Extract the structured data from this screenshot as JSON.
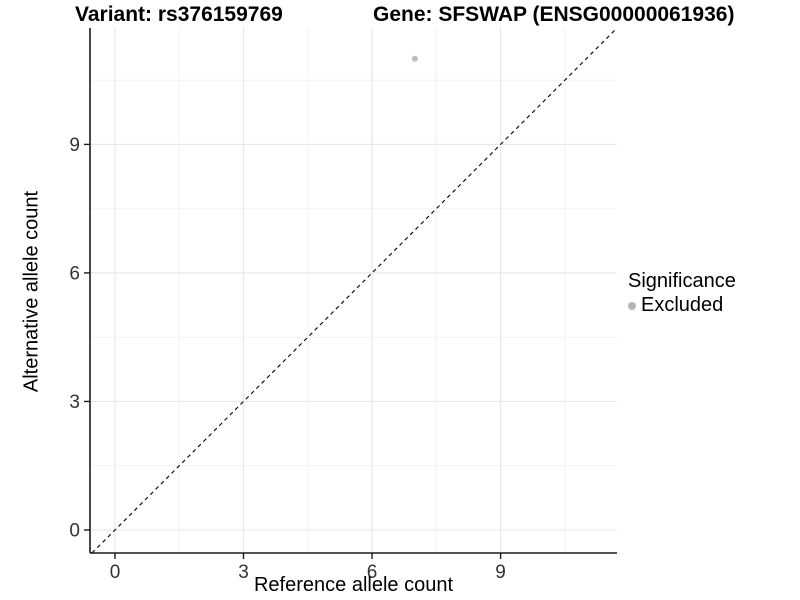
{
  "title": {
    "variant": "Variant: rs376159769",
    "gene": "Gene: SFSWAP (ENSG00000061936)"
  },
  "legend": {
    "title": "Significance",
    "items": [
      {
        "label": "Excluded",
        "color": "#b5b5b5"
      }
    ]
  },
  "chart_data": {
    "type": "scatter",
    "title": "Variant: rs376159769   Gene: SFSWAP (ENSG00000061936)",
    "xlabel": "Reference allele count",
    "ylabel": "Alternative allele count",
    "xlim": [
      -0.583,
      11.717
    ],
    "ylim": [
      -0.537,
      11.717
    ],
    "xticks": [
      0,
      3,
      6,
      9
    ],
    "yticks": [
      0,
      3,
      6,
      9
    ],
    "minor_xticks": [
      1.5,
      4.5,
      7.5,
      10.5
    ],
    "minor_yticks": [
      1.5,
      4.5,
      7.5,
      10.5
    ],
    "grid": true,
    "legend_position": "right",
    "series": [
      {
        "name": "Excluded",
        "color": "#bebebe",
        "points": [
          {
            "x": 7,
            "y": 11
          }
        ]
      }
    ],
    "reference_line": {
      "type": "identity",
      "style": "dashed",
      "color": "#000000"
    }
  },
  "colors": {
    "background": "#ffffff",
    "grid_major": "#e7e7e7",
    "grid_minor": "#f1f1f1",
    "axis": "#1a1a1a",
    "tick_label": "#333333",
    "point": "#bebebe",
    "legend_point": "#b5b5b5",
    "identity_line": "#000000"
  }
}
